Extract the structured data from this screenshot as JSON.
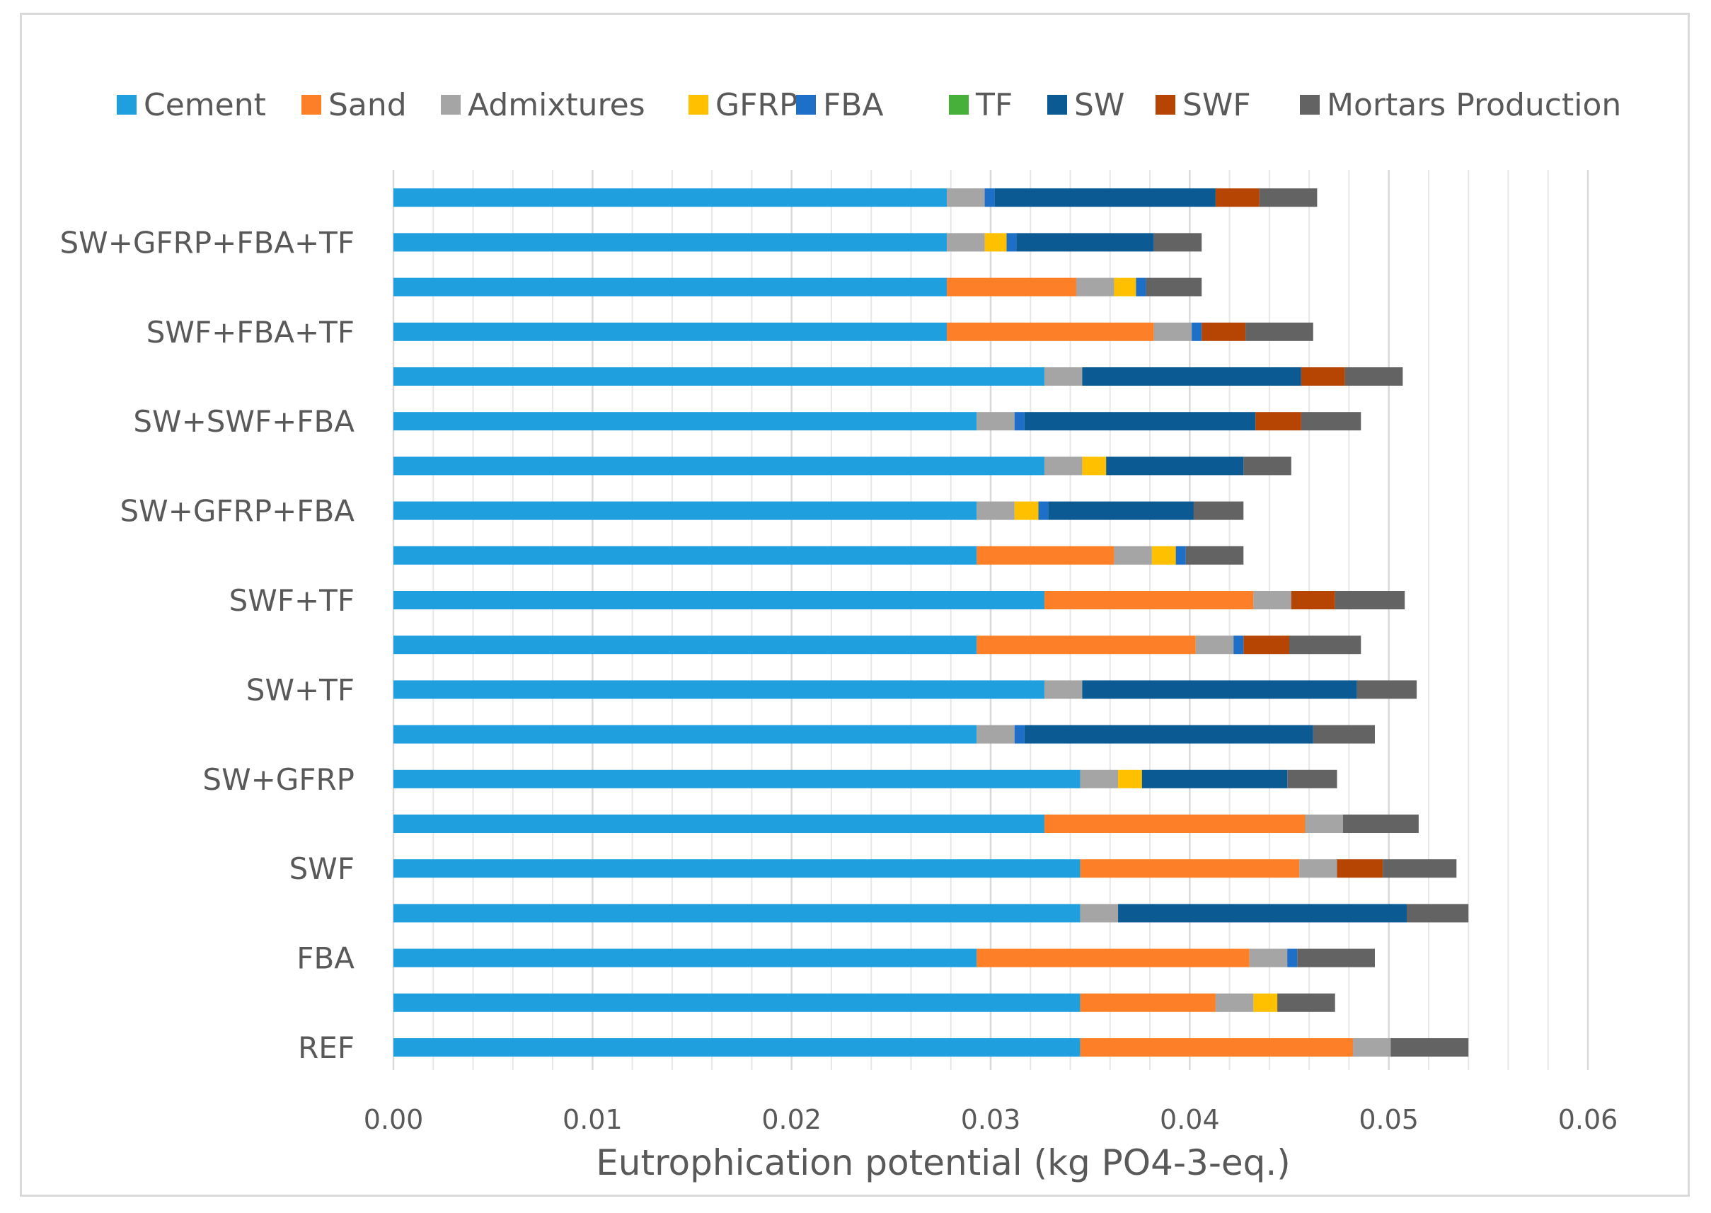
{
  "chart_data": {
    "type": "bar",
    "orientation": "horizontal",
    "stacked": true,
    "title": "",
    "xlabel": "Eutrophication potential (kg PO4-3-eq.)",
    "ylabel": "",
    "xlim": [
      0,
      0.06
    ],
    "xticks": [
      0,
      0.01,
      0.02,
      0.03,
      0.04,
      0.05,
      0.06
    ],
    "xtick_labels": [
      "0.00",
      "0.01",
      "0.02",
      "0.03",
      "0.04",
      "0.05",
      "0.06"
    ],
    "grid": "vertical",
    "legend_position": "top",
    "series_names": [
      "Cement",
      "Sand",
      "Admixtures",
      "GFRP",
      "FBA",
      "TF",
      "SW",
      "SWF",
      "Mortars Production"
    ],
    "series_colors": [
      "#1f9fde",
      "#fd7f27",
      "#a5a5a5",
      "#ffc000",
      "#1d6fc7",
      "#47b03b",
      "#0c5a94",
      "#b64503",
      "#636363"
    ],
    "categories": [
      {
        "label": "REF",
        "show_label": true,
        "values": [
          0.0345,
          0.0137,
          0.0019,
          0,
          0,
          0,
          0,
          0,
          0.0039
        ]
      },
      {
        "label": "",
        "show_label": false,
        "values": [
          0.0345,
          0.0068,
          0.0019,
          0.0012,
          0,
          0,
          0,
          0,
          0.0029
        ]
      },
      {
        "label": "FBA",
        "show_label": true,
        "values": [
          0.0293,
          0.0137,
          0.0019,
          0,
          0.0005,
          0,
          0,
          0,
          0.0039
        ]
      },
      {
        "label": "",
        "show_label": false,
        "values": [
          0.0345,
          0,
          0.0019,
          0,
          0,
          0,
          0.0145,
          0,
          0.0031
        ]
      },
      {
        "label": "SWF",
        "show_label": true,
        "values": [
          0.0345,
          0.011,
          0.0019,
          0,
          0,
          0,
          0,
          0.0023,
          0.0037
        ]
      },
      {
        "label": "",
        "show_label": false,
        "values": [
          0.0327,
          0.0131,
          0.0019,
          0,
          0,
          0,
          0,
          0,
          0.0038
        ]
      },
      {
        "label": "SW+GFRP",
        "show_label": true,
        "values": [
          0.0345,
          0,
          0.0019,
          0.0012,
          0,
          0,
          0.0073,
          0,
          0.0025
        ]
      },
      {
        "label": "",
        "show_label": false,
        "values": [
          0.0293,
          0,
          0.0019,
          0,
          0.0005,
          0,
          0.0145,
          0,
          0.0031
        ]
      },
      {
        "label": "SW+TF",
        "show_label": true,
        "values": [
          0.0327,
          0,
          0.0019,
          0,
          0,
          0,
          0.0138,
          0,
          0.003
        ]
      },
      {
        "label": "",
        "show_label": false,
        "values": [
          0.0293,
          0.011,
          0.0019,
          0,
          0.0005,
          0,
          0,
          0.0023,
          0.0036
        ]
      },
      {
        "label": "SWF+TF",
        "show_label": true,
        "values": [
          0.0327,
          0.0105,
          0.0019,
          0,
          0,
          0,
          0,
          0.0022,
          0.0035
        ]
      },
      {
        "label": "",
        "show_label": false,
        "values": [
          0.0293,
          0.0069,
          0.0019,
          0.0012,
          0.0005,
          0,
          0,
          0,
          0.0029
        ]
      },
      {
        "label": "SW+GFRP+FBA",
        "show_label": true,
        "values": [
          0.0293,
          0,
          0.0019,
          0.0012,
          0.0005,
          0,
          0.0073,
          0,
          0.0025
        ]
      },
      {
        "label": "",
        "show_label": false,
        "values": [
          0.0327,
          0,
          0.0019,
          0.0012,
          0,
          0,
          0.0069,
          0,
          0.0024
        ]
      },
      {
        "label": "SW+SWF+FBA",
        "show_label": true,
        "values": [
          0.0293,
          0,
          0.0019,
          0,
          0.0005,
          0,
          0.0116,
          0.0023,
          0.003
        ]
      },
      {
        "label": "",
        "show_label": false,
        "values": [
          0.0327,
          0,
          0.0019,
          0,
          0,
          0,
          0.011,
          0.0022,
          0.0029
        ]
      },
      {
        "label": "SWF+FBA+TF",
        "show_label": true,
        "values": [
          0.0278,
          0.0104,
          0.0019,
          0,
          0.0005,
          0,
          0,
          0.0022,
          0.0034
        ]
      },
      {
        "label": "",
        "show_label": false,
        "values": [
          0.0278,
          0.0065,
          0.0019,
          0.0011,
          0.0005,
          0,
          0,
          0,
          0.0028
        ]
      },
      {
        "label": "SW+GFRP+FBA+TF",
        "show_label": true,
        "values": [
          0.0278,
          0,
          0.0019,
          0.0011,
          0.0005,
          0,
          0.0069,
          0,
          0.0024
        ]
      },
      {
        "label": "",
        "show_label": false,
        "values": [
          0.0278,
          0,
          0.0019,
          0,
          0.0005,
          0,
          0.0111,
          0.0022,
          0.0029
        ]
      }
    ]
  }
}
